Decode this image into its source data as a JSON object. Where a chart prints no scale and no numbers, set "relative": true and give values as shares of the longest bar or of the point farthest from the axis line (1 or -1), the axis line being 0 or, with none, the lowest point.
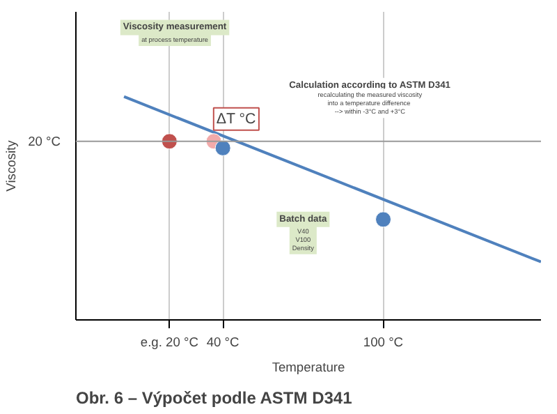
{
  "chart_data": {
    "type": "line",
    "relative": true,
    "xlabel": "Temperature",
    "ylabel": "Viscosity",
    "xlim": [
      -15,
      159
    ],
    "xticks": [
      {
        "value": 20,
        "label": "e.g. 20 °C"
      },
      {
        "value": 40,
        "label": "40 °C"
      },
      {
        "value": 100,
        "label": "100 °C"
      }
    ],
    "series": [
      {
        "color": "#4f81bd",
        "x": [
          3,
          159
        ],
        "values": [
          1,
          0.26
        ]
      },
      {
        "type": "scatter",
        "x": [
          20,
          36.6,
          40,
          100
        ],
        "values": [
          0.8,
          0.8,
          0.77,
          0.45
        ],
        "colors": [
          "#c0504d",
          "#f2aaaa",
          "#4f81bd",
          "#4f81bd"
        ],
        "marker": "circle"
      }
    ],
    "ref_lines": [
      {
        "axis": "y",
        "value": 0.8,
        "label": "20 °C",
        "color": "#999999"
      }
    ],
    "grid": "x",
    "annotations": [
      "Viscosity measurement",
      "at process temperature",
      "ΔT °C",
      "Calculation according to ASTM D341",
      "recalculating the measured viscosity into a temperature difference --> within -3°C and +3°C",
      "Batch data",
      "V40\nV100\nDensity",
      "Obr. 6 – Výpočet podle ASTM D341"
    ]
  }
}
